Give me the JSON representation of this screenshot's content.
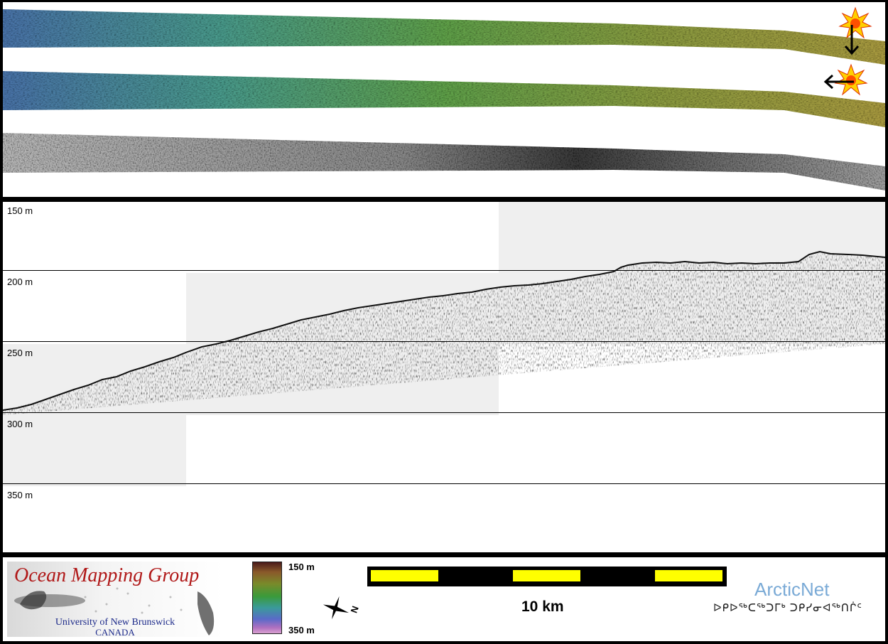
{
  "profile": {
    "depth_labels": [
      "150 m",
      "200 m",
      "250 m",
      "300 m",
      "350 m"
    ]
  },
  "legend": {
    "logo_title": "Ocean Mapping Group",
    "logo_university": "University of New Brunswick",
    "logo_country": "CANADA",
    "colorbar_top": "150 m",
    "colorbar_bottom": "350 m",
    "compass_letter": "N",
    "scale_label": "10 km",
    "partner_name": "ArcticNet",
    "partner_syllabics": "ᐅᑭᐅᖅᑕᖅᑐᒥᒃ ᑐᑭᓯᓂᐊᖅᑎᒌᑦ"
  },
  "colors": {
    "bathy_deep": "#4a72a8",
    "bathy_mid": "#5fa04a",
    "bathy_shallow": "#9a9a40",
    "seafloor_trace": "#111111",
    "profile_window": "#efefef",
    "scalebar_fill": "#ffff00",
    "logo_red": "#b01818",
    "logo_blue": "#1c2a8a",
    "arcticnet_blue": "#7aaad6"
  },
  "icons": [
    "sun-illumination-icon",
    "illumination-arrow-icon",
    "north-arrow-icon"
  ]
}
